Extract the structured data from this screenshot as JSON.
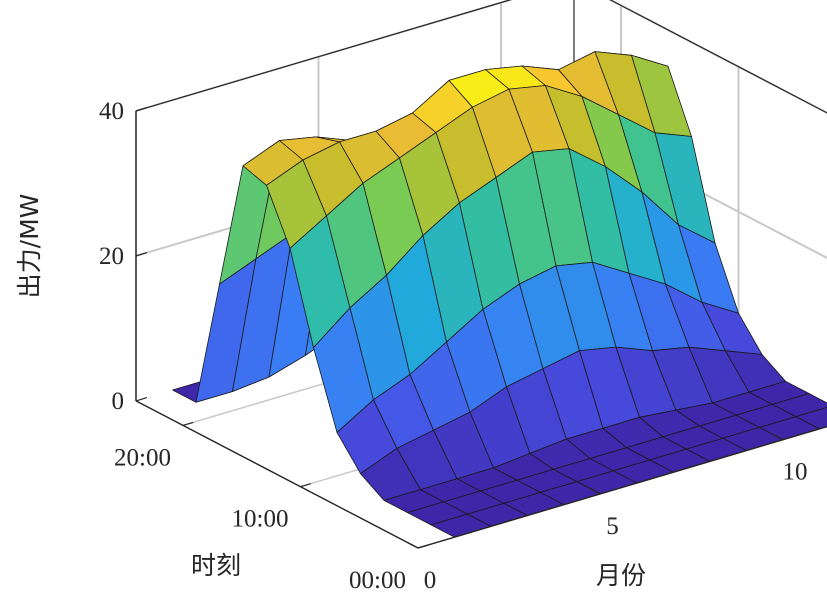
{
  "chart_data": {
    "type": "surface3d",
    "title": "",
    "xlabel": "月份",
    "ylabel": "时刻",
    "zlabel": "出力/MW",
    "x_ticks": [
      "0",
      "5",
      "10"
    ],
    "y_ticks": [
      "00:00",
      "10:00",
      "20:00"
    ],
    "z_ticks": [
      "0",
      "20",
      "40"
    ],
    "x_range": [
      0,
      12
    ],
    "y_range": [
      0,
      24
    ],
    "z_range": [
      0,
      40
    ],
    "colormap": "parula",
    "grid": true,
    "months": [
      1,
      2,
      3,
      4,
      5,
      6,
      7,
      8,
      9,
      10,
      11,
      12
    ],
    "hours": [
      0,
      2,
      4,
      6,
      8,
      10,
      12,
      14,
      16,
      18,
      20,
      22,
      24
    ],
    "z": [
      [
        0,
        0,
        0,
        0,
        0,
        0,
        0,
        0,
        0,
        0,
        0,
        0
      ],
      [
        0,
        0,
        0,
        0,
        0,
        0,
        0,
        0,
        0,
        0,
        0,
        0
      ],
      [
        0,
        0,
        0,
        0,
        0,
        0,
        0,
        0,
        0,
        0,
        0,
        0
      ],
      [
        0,
        0,
        0,
        0,
        0.5,
        1,
        1,
        1,
        0.5,
        0,
        0,
        0
      ],
      [
        2,
        4,
        5,
        6,
        8,
        9,
        10,
        9,
        7,
        6,
        4,
        2
      ],
      [
        6,
        9,
        11,
        14,
        17,
        19,
        20,
        19,
        16,
        13,
        9,
        6
      ],
      [
        16,
        20,
        23,
        27,
        30,
        32,
        34,
        33,
        29,
        24,
        18,
        14
      ],
      [
        28,
        31,
        34,
        36,
        38,
        40,
        41,
        40,
        37,
        33,
        29,
        27
      ],
      [
        35,
        37,
        38,
        38,
        39,
        42,
        42,
        41,
        39,
        40,
        38,
        35
      ],
      [
        36,
        38,
        37,
        35,
        34,
        37,
        38,
        37,
        35,
        36,
        35,
        33
      ],
      [
        18,
        20,
        22,
        24,
        26,
        28,
        29,
        28,
        26,
        23,
        19,
        17
      ],
      [
        0,
        0,
        0.5,
        2,
        4,
        6,
        7,
        6,
        4,
        1,
        0,
        0
      ],
      [
        0,
        0,
        0,
        0,
        0,
        0,
        0,
        0,
        0,
        0,
        0,
        0
      ]
    ]
  }
}
